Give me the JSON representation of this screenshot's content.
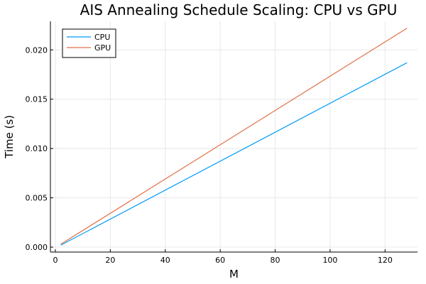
{
  "chart_data": {
    "type": "line",
    "title": "AIS Annealing Schedule Scaling: CPU vs GPU",
    "xlabel": "M",
    "ylabel": "Time (s)",
    "xlim": [
      -1.8,
      131.8
    ],
    "ylim": [
      -0.0005,
      0.0229
    ],
    "x_ticks": [
      0,
      20,
      40,
      60,
      80,
      100,
      120
    ],
    "x_tick_labels": [
      "0",
      "20",
      "40",
      "60",
      "80",
      "100",
      "120"
    ],
    "y_ticks": [
      0.0,
      0.005,
      0.01,
      0.015,
      0.02
    ],
    "y_tick_labels": [
      "0.000",
      "0.005",
      "0.010",
      "0.015",
      "0.020"
    ],
    "grid": true,
    "legend_position": "top-left",
    "series": [
      {
        "name": "CPU",
        "color": "#009AF9",
        "x": [
          2,
          128
        ],
        "y": [
          0.0002,
          0.0187
        ]
      },
      {
        "name": "GPU",
        "color": "#E26F46",
        "x": [
          2,
          128
        ],
        "y": [
          0.0003,
          0.0222
        ]
      }
    ]
  }
}
